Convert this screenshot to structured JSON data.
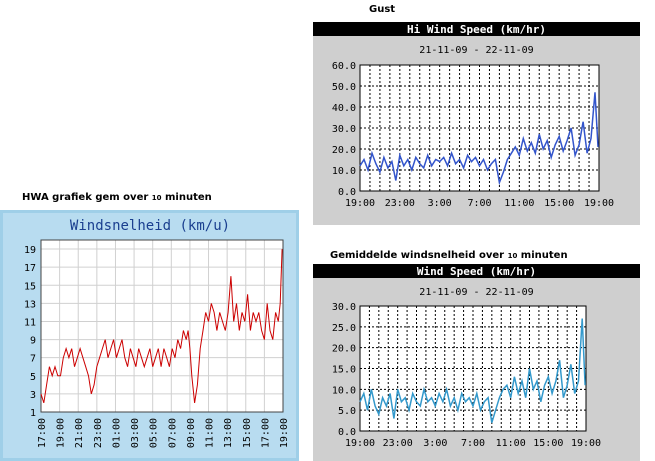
{
  "captions": {
    "gust": "Gust",
    "hwa": "HWA grafiek gem over",
    "hwa_small": "10",
    "hwa_tail": " minuten",
    "avg": "Gemiddelde windsnelheid over",
    "avg_small": "10",
    "avg_tail": " minuten"
  },
  "chart_data": [
    {
      "id": "hwa",
      "type": "line",
      "title": "Windsnelheid (km/u)",
      "xlabel": "",
      "ylabel": "",
      "ylim": [
        1,
        20
      ],
      "yticks": [
        1,
        3,
        5,
        7,
        9,
        11,
        13,
        15,
        17,
        19
      ],
      "x_tick_labels": [
        "17:00",
        "19:00",
        "21:00",
        "23:00",
        "01:00",
        "03:00",
        "05:00",
        "07:00",
        "09:00",
        "11:00",
        "13:00",
        "15:00",
        "17:00",
        "19:00"
      ],
      "x_span_hours": 26,
      "series": [
        {
          "name": "Windsnelheid",
          "color": "#cc0000",
          "x": [
            0,
            0.3,
            0.6,
            0.9,
            1.2,
            1.5,
            1.8,
            2.1,
            2.4,
            2.7,
            3.0,
            3.3,
            3.6,
            3.9,
            4.2,
            4.5,
            4.8,
            5.1,
            5.4,
            5.7,
            6.0,
            6.3,
            6.6,
            6.9,
            7.2,
            7.5,
            7.8,
            8.1,
            8.4,
            8.7,
            9.0,
            9.3,
            9.6,
            9.9,
            10.2,
            10.5,
            10.8,
            11.1,
            11.4,
            11.7,
            12.0,
            12.3,
            12.6,
            12.9,
            13.2,
            13.5,
            13.8,
            14.1,
            14.4,
            14.7,
            15.0,
            15.3,
            15.6,
            15.8,
            16.0,
            16.2,
            16.5,
            16.8,
            17.1,
            17.4,
            17.7,
            18.0,
            18.3,
            18.6,
            18.9,
            19.2,
            19.5,
            19.8,
            20.1,
            20.4,
            20.7,
            21.0,
            21.3,
            21.6,
            21.9,
            22.2,
            22.5,
            22.8,
            23.1,
            23.4,
            23.7,
            24.0,
            24.3,
            24.6,
            24.9,
            25.2,
            25.5,
            25.7,
            25.9
          ],
          "y": [
            3,
            2,
            4,
            6,
            5,
            6,
            5,
            5,
            7,
            8,
            7,
            8,
            6,
            7,
            8,
            7,
            6,
            5,
            3,
            4,
            6,
            7,
            8,
            9,
            7,
            8,
            9,
            7,
            8,
            9,
            7,
            6,
            8,
            7,
            6,
            8,
            7,
            6,
            7,
            8,
            6,
            7,
            8,
            6,
            8,
            7,
            6,
            8,
            7,
            9,
            8,
            10,
            9,
            10,
            8,
            5,
            2,
            4,
            8,
            10,
            12,
            11,
            13,
            12,
            10,
            12,
            11,
            10,
            12,
            16,
            11,
            13,
            10,
            12,
            11,
            14,
            10,
            12,
            11,
            12,
            10,
            9,
            13,
            10,
            9,
            12,
            11,
            13,
            19
          ]
        }
      ]
    },
    {
      "id": "gust",
      "type": "line",
      "title": "Hi Wind Speed (km/hr)",
      "subtitle": "21-11-09 - 22-11-09",
      "ylim": [
        0,
        60
      ],
      "y_tick_labels": [
        "0.0",
        "10.0",
        "20.0",
        "30.0",
        "40.0",
        "50.0",
        "60.0"
      ],
      "x_tick_labels": [
        "19:00",
        "23:00",
        "3:00",
        "7:00",
        "11:00",
        "15:00",
        "19:00"
      ],
      "x_span_hours": 24,
      "series": [
        {
          "name": "Hi Wind Speed",
          "color": "#3355cc",
          "x": [
            0,
            0.4,
            0.8,
            1.2,
            1.6,
            2.0,
            2.4,
            2.8,
            3.2,
            3.6,
            4.0,
            4.4,
            4.8,
            5.2,
            5.6,
            6.0,
            6.4,
            6.8,
            7.2,
            7.6,
            8.0,
            8.4,
            8.8,
            9.2,
            9.6,
            10.0,
            10.4,
            10.8,
            11.2,
            11.6,
            12.0,
            12.4,
            12.8,
            13.2,
            13.6,
            14.0,
            14.4,
            14.8,
            15.2,
            15.6,
            16.0,
            16.4,
            16.8,
            17.2,
            17.6,
            18.0,
            18.4,
            18.8,
            19.2,
            19.6,
            20.0,
            20.4,
            20.8,
            21.2,
            21.6,
            22.0,
            22.4,
            22.8,
            23.2,
            23.6,
            23.9
          ],
          "y": [
            12,
            15,
            10,
            18,
            13,
            9,
            16,
            11,
            14,
            5,
            17,
            12,
            15,
            10,
            16,
            13,
            11,
            17,
            12,
            15,
            14,
            16,
            12,
            18,
            13,
            15,
            11,
            17,
            14,
            16,
            12,
            15,
            10,
            13,
            15,
            4,
            9,
            15,
            18,
            21,
            17,
            25,
            19,
            23,
            18,
            27,
            20,
            24,
            16,
            22,
            26,
            19,
            24,
            30,
            17,
            22,
            33,
            18,
            25,
            47,
            21
          ]
        }
      ]
    },
    {
      "id": "avg",
      "type": "line",
      "title": "Wind Speed (km/hr)",
      "subtitle": "21-11-09 - 22-11-09",
      "ylim": [
        0,
        30
      ],
      "y_tick_labels": [
        "0.0",
        "5.0",
        "10.0",
        "15.0",
        "20.0",
        "25.0",
        "30.0"
      ],
      "x_tick_labels": [
        "19:00",
        "23:00",
        "3:00",
        "7:00",
        "11:00",
        "15:00",
        "19:00"
      ],
      "x_span_hours": 24,
      "series": [
        {
          "name": "Wind Speed",
          "color": "#3399cc",
          "x": [
            0,
            0.4,
            0.8,
            1.2,
            1.6,
            2.0,
            2.4,
            2.8,
            3.2,
            3.6,
            4.0,
            4.4,
            4.8,
            5.2,
            5.6,
            6.0,
            6.4,
            6.8,
            7.2,
            7.6,
            8.0,
            8.4,
            8.8,
            9.2,
            9.6,
            10.0,
            10.4,
            10.8,
            11.2,
            11.6,
            12.0,
            12.4,
            12.8,
            13.2,
            13.6,
            14.0,
            14.4,
            14.8,
            15.2,
            15.6,
            16.0,
            16.4,
            16.8,
            17.2,
            17.6,
            18.0,
            18.4,
            18.8,
            19.2,
            19.6,
            20.0,
            20.4,
            20.8,
            21.2,
            21.6,
            22.0,
            22.4,
            22.8,
            23.2,
            23.6,
            23.9
          ],
          "y": [
            7,
            9,
            5,
            10,
            6,
            4,
            8,
            6,
            9,
            3,
            10,
            7,
            8,
            5,
            9,
            7,
            6,
            10,
            7,
            8,
            6,
            9,
            7,
            10,
            6,
            8,
            5,
            9,
            7,
            8,
            6,
            9,
            5,
            7,
            8,
            2,
            5,
            8,
            10,
            11,
            8,
            13,
            9,
            12,
            8,
            15,
            10,
            12,
            7,
            11,
            13,
            9,
            12,
            17,
            8,
            11,
            16,
            9,
            12,
            27,
            11
          ]
        }
      ]
    }
  ]
}
